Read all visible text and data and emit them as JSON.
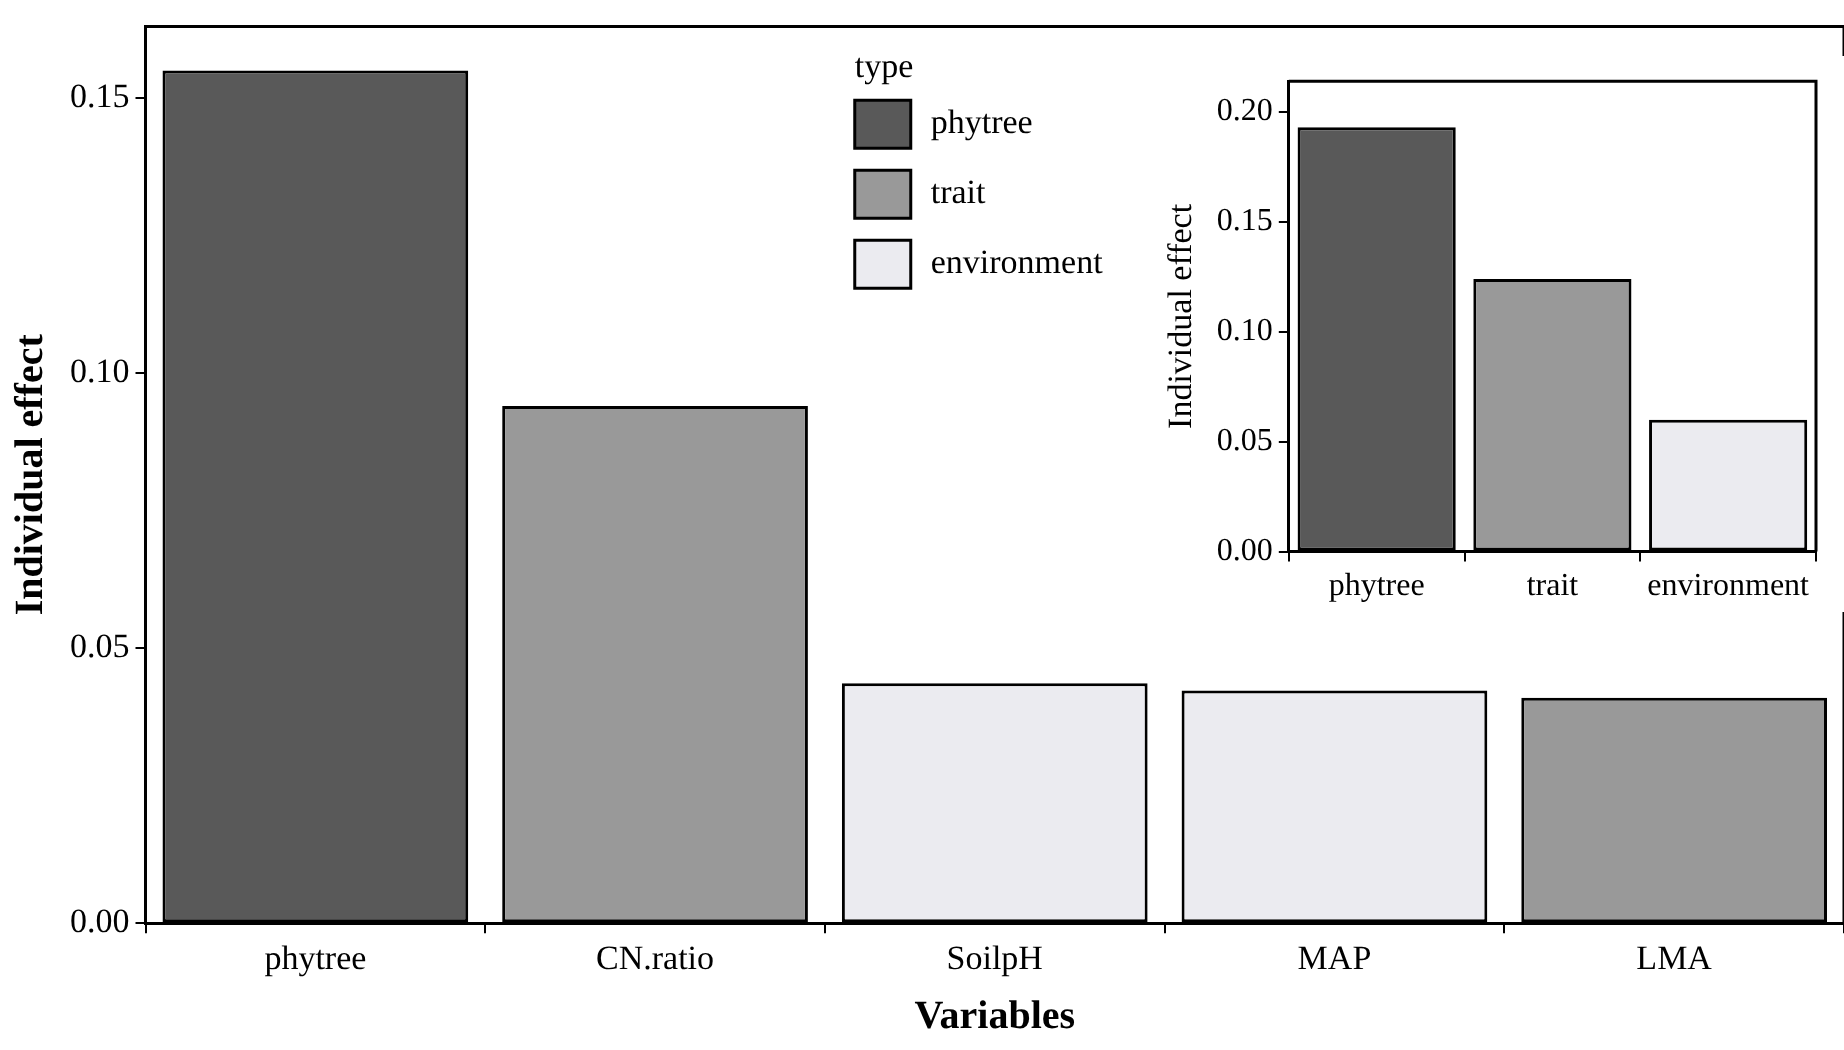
{
  "chart_data": [
    {
      "type": "bar",
      "xlabel": "Variables",
      "ylabel": "Individual effect",
      "categories": [
        "phytree",
        "CN.ratio",
        "SoilpH",
        "MAP",
        "LMA"
      ],
      "series": [
        {
          "name": "phytree",
          "color": "#595959",
          "values": [
            0.155,
            null,
            null,
            null,
            null
          ]
        },
        {
          "name": "trait",
          "color": "#999999",
          "values": [
            null,
            0.094,
            null,
            null,
            0.041
          ]
        },
        {
          "name": "environment",
          "color": "#ebebf0",
          "values": [
            null,
            null,
            0.0436,
            0.0423,
            null
          ]
        }
      ],
      "legend_title": "type",
      "legend": "top",
      "grid": false,
      "ylim": [
        0,
        0.163
      ],
      "yticks": [
        {
          "value": 0,
          "label": "0.00"
        },
        {
          "value": 0.05,
          "label": "0.05"
        },
        {
          "value": 0.1,
          "label": "0.10"
        },
        {
          "value": 0.15,
          "label": "0.15"
        }
      ]
    },
    {
      "type": "bar",
      "ylabel": "Individual effect",
      "categories": [
        "phytree",
        "trait",
        "environment"
      ],
      "values": [
        0.193,
        0.124,
        0.06
      ],
      "colors": [
        "#595959",
        "#999999",
        "#ebebf0"
      ],
      "grid": false,
      "ylim": [
        0,
        0.214
      ],
      "yticks": [
        {
          "value": 0,
          "label": "0.00"
        },
        {
          "value": 0.05,
          "label": "0.05"
        },
        {
          "value": 0.1,
          "label": "0.10"
        },
        {
          "value": 0.15,
          "label": "0.15"
        },
        {
          "value": 0.2,
          "label": "0.20"
        }
      ]
    }
  ]
}
